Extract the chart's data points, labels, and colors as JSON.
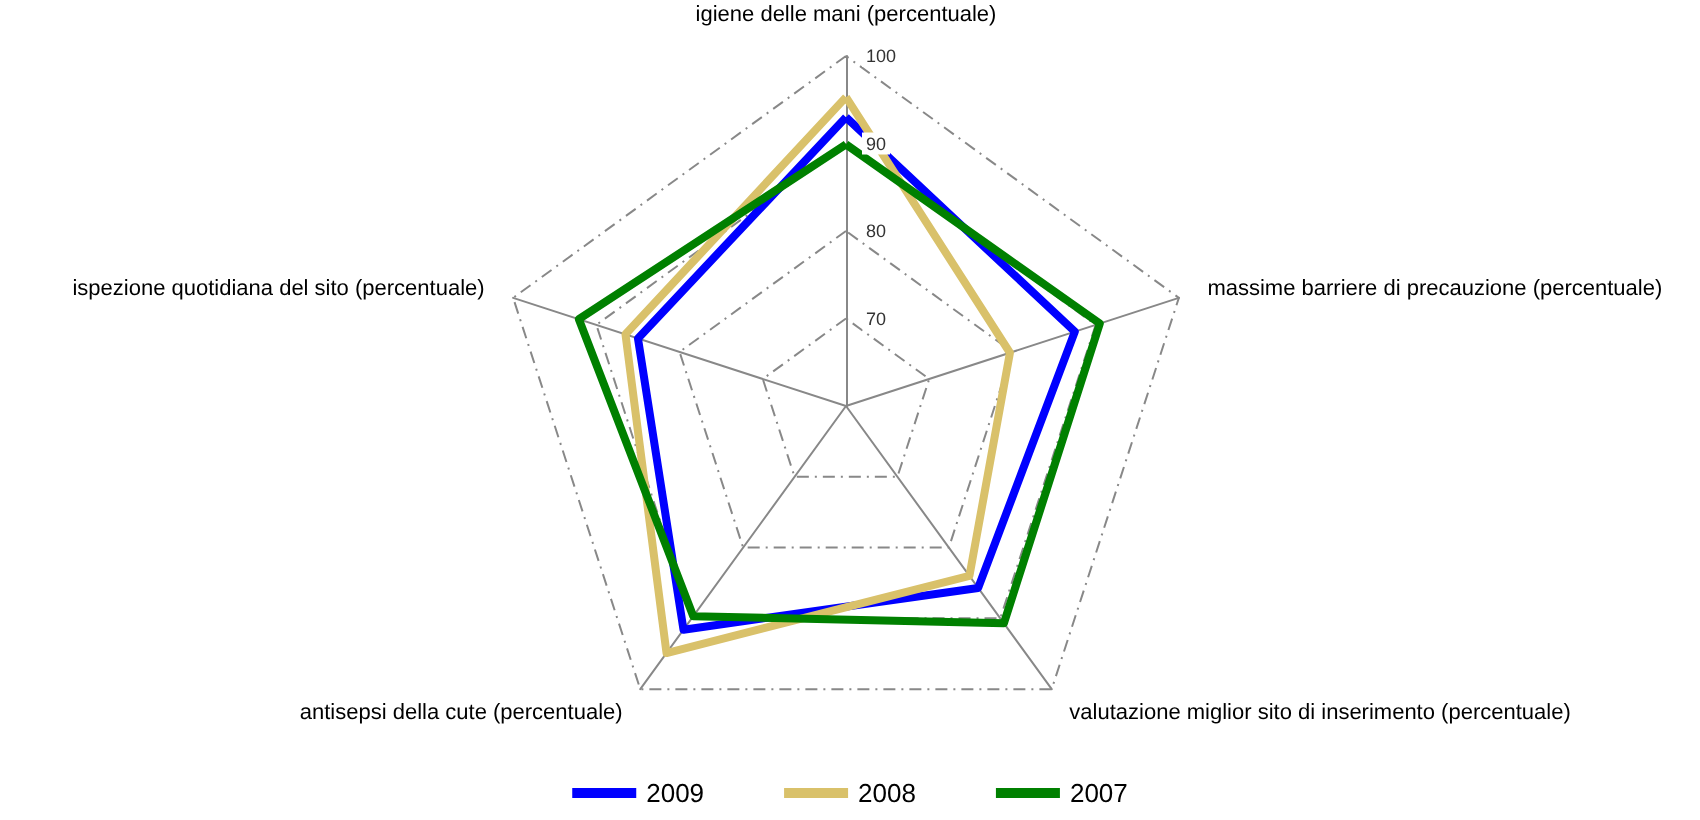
{
  "chart_data": {
    "type": "radar",
    "categories": [
      "igiene delle mani (percentuale)",
      "massime barriere di precauzione (percentuale)",
      "valutazione miglior sito di inserimento (percentuale)",
      "antisepsi della cute (percentuale)",
      "ispezione quotidiana del sito (percentuale)"
    ],
    "ylim": [
      60,
      100
    ],
    "yticks": [
      70,
      80,
      90,
      100
    ],
    "legend": "bottom",
    "marker": "none",
    "line_style": "solid",
    "grid": true,
    "series": [
      {
        "name": "2009",
        "color": "#0000ff",
        "values": [
          93,
          87.5,
          85.7,
          91.6,
          85
        ]
      },
      {
        "name": "2008",
        "color": "#d9c16a",
        "values": [
          95.3,
          79.7,
          84,
          94.9,
          86.5
        ]
      },
      {
        "name": "2007",
        "color": "#008000",
        "values": [
          89.9,
          90.5,
          90.7,
          89.7,
          92.1
        ]
      }
    ]
  }
}
